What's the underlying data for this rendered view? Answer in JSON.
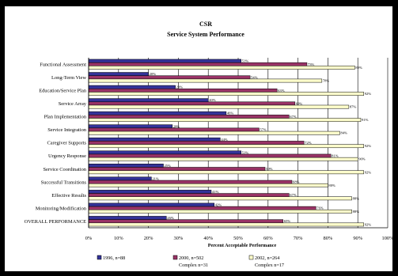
{
  "chart_data": {
    "type": "bar",
    "orientation": "horizontal",
    "title": "CSR",
    "subtitle": "Service System Performance",
    "xlabel": "Percent Acceptable Performance",
    "xlim": [
      0,
      100
    ],
    "x_ticks": [
      "0%",
      "10%",
      "20%",
      "30%",
      "40%",
      "50%",
      "60%",
      "70%",
      "80%",
      "90%",
      "100%"
    ],
    "grid": true,
    "legend_position": "bottom",
    "categories": [
      "Functional Assessment",
      "Long-Term View",
      "Education/Service Plan",
      "Service Array",
      "Plan Implementation",
      "Service Integration",
      "Caregiver Supports",
      "Urgency Response",
      "Service Coordination",
      "Successful Transitions",
      "Effective Results",
      "Monitoring/Modification",
      "OVERALL PERFORMANCE"
    ],
    "series": [
      {
        "name": "1996, n=88",
        "color": "#333399",
        "values": [
          51,
          20,
          29,
          40,
          46,
          28,
          44,
          51,
          25,
          21,
          41,
          42,
          26
        ],
        "labels": [
          "51%",
          "20%",
          "29%",
          "40%",
          "46%",
          "28%",
          "44%",
          "51%",
          "25%",
          "21%",
          "41%",
          "42%",
          "26%"
        ]
      },
      {
        "name": "2000, n=502",
        "name_line2": "Complex n=31",
        "color": "#993366",
        "values": [
          73,
          54,
          63,
          69,
          67,
          57,
          72,
          81,
          59,
          68,
          67,
          76,
          65
        ],
        "labels": [
          "73%",
          "54%",
          "63%",
          "69%",
          "67%",
          "57%",
          "72%",
          "81%",
          "59%",
          "68%",
          "67%",
          "76%",
          "65%"
        ]
      },
      {
        "name": "2002, n=264",
        "name_line2": "Complex n=17",
        "color": "#FFFFCC",
        "values": [
          89,
          78,
          92,
          87,
          91,
          84,
          92,
          90,
          92,
          80,
          88,
          88,
          92
        ],
        "labels": [
          "89%",
          "78%",
          "92%",
          "87%",
          "91%",
          "84%",
          "92%",
          "90%",
          "92%",
          "80%",
          "88%",
          "88%",
          "92%"
        ]
      }
    ]
  }
}
